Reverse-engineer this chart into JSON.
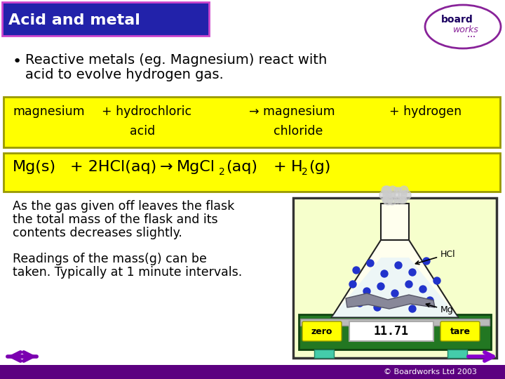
{
  "title": "Acid and metal",
  "title_bg": "#2222aa",
  "title_border": "#cc44cc",
  "title_fg": "#ffffff",
  "bg_color": "#ffffff",
  "bullet_text_line1": "Reactive metals (eg. Magnesium) react with",
  "bullet_text_line2": "acid to evolve hydrogen gas.",
  "word_eq_box_color": "#ffff00",
  "word_eq_box_edge": "#999900",
  "symbol_eq_box_color": "#ffff00",
  "symbol_eq_box_edge": "#999900",
  "desc_text1_l1": "As the gas given off leaves the flask",
  "desc_text1_l2": "the total mass of the flask and its",
  "desc_text1_l3": "contents decreases slightly.",
  "desc_text2_l1": "Readings of the mass(g) can be",
  "desc_text2_l2": "taken. Typically at 1 minute intervals.",
  "footer_text": "© Boardworks Ltd 2003",
  "footer_bg": "#5c0080",
  "arrow_left_color": "#7b00b0",
  "arrow_right_color": "#8800cc",
  "board_works_circle_color": "#882299",
  "flask_bg_top": "#ffffcc",
  "flask_bg_bottom": "#ccffee",
  "scale_green": "#227722",
  "scale_teal": "#44ccaa",
  "zero_yellow": "#ffff00",
  "tare_yellow": "#ffff00"
}
